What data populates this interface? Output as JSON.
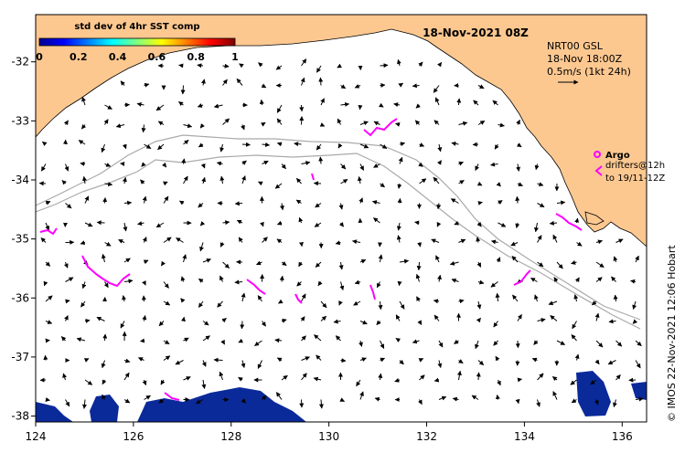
{
  "map": {
    "date_title": "18-Nov-2021 08Z",
    "colorbar": {
      "title": "std dev of 4hr SST comp",
      "ticks": [
        "0",
        "0.2",
        "0.4",
        "0.6",
        "0.8",
        "1"
      ],
      "colors": [
        "#00008f",
        "#0000ff",
        "#0080ff",
        "#00ffff",
        "#80ff80",
        "#ffff00",
        "#ff8000",
        "#ff0000",
        "#800000"
      ]
    },
    "info": {
      "product": "NRT00 GSL",
      "time": "18-Nov 18:00Z",
      "scale": "0.5m/s (1kt 24h)"
    },
    "legend": {
      "argo": "Argo",
      "drifters": "drifters@12h",
      "drifters_to": "to 19/11-12Z"
    },
    "credit": "© IMOS 22-Nov-2021 12:06 Hobart",
    "x_ticks": [
      "124",
      "126",
      "128",
      "130",
      "132",
      "134",
      "136"
    ],
    "y_ticks": [
      "-32",
      "-33",
      "-34",
      "-35",
      "-36",
      "-37",
      "-38"
    ],
    "lon_range": [
      124,
      136.5
    ],
    "lat_range": [
      -31.2,
      -38.1
    ],
    "colors": {
      "land": "#fcc890",
      "drifter": "#ff00ff",
      "contour": "#aaaaaa",
      "sst_low": "#0a2a9a"
    }
  }
}
